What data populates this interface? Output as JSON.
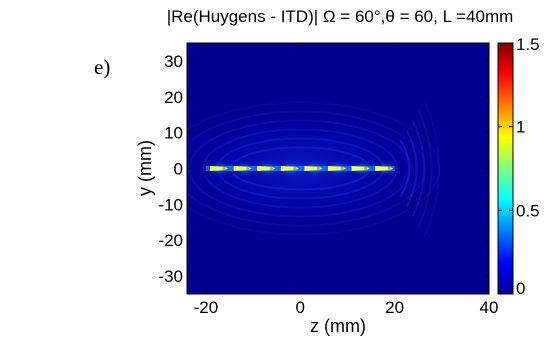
{
  "panel_label": "e)",
  "chart_data": {
    "type": "heatmap",
    "title": "|Re(Huygens - ITD)| Ω = 60°,θ = 60, L =40mm",
    "xlabel": "z (mm)",
    "ylabel": "y (mm)",
    "xlim": [
      -24,
      40
    ],
    "ylim": [
      -35,
      35
    ],
    "x_ticks": [
      -20,
      0,
      20,
      40
    ],
    "y_ticks": [
      30,
      20,
      10,
      0,
      -10,
      -20,
      -30
    ],
    "colorbar": {
      "range": [
        0,
        1.5
      ],
      "ticks": [
        1.5,
        1,
        0.5,
        0
      ],
      "colormap": "jet"
    },
    "background_color": "#00008f",
    "line_source": {
      "y": 0,
      "z_start": -20,
      "z_end": 20
    },
    "hotspots_z": [
      -17,
      -12,
      -7,
      -2,
      3,
      8,
      13,
      18
    ],
    "hotspot_peak_value": 0.9
  }
}
